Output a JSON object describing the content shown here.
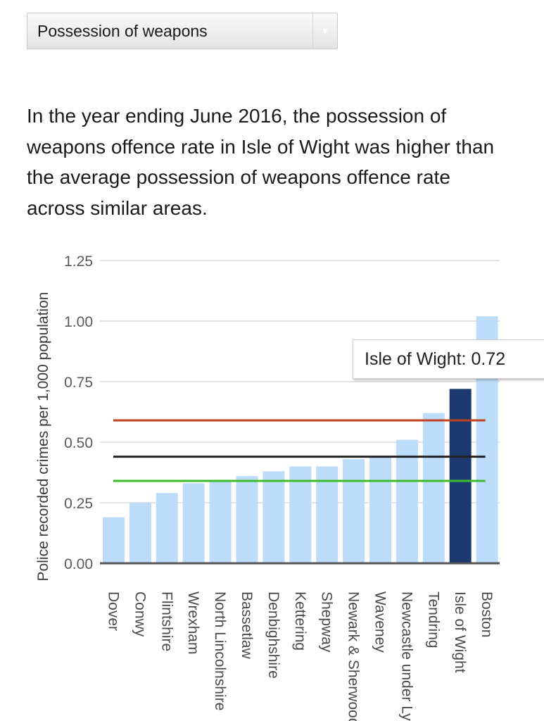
{
  "dropdown": {
    "selected": "Possession of weapons"
  },
  "summary": "In the year ending June 2016, the possession of weapons offence rate in Isle of Wight was higher than the average possession of weapons offence rate across similar areas.",
  "tooltip": {
    "text": "Isle of Wight: 0.72"
  },
  "chart_data": {
    "type": "bar",
    "title": "",
    "xlabel": "",
    "ylabel": "Police recorded crimes per 1,000 population",
    "ylim": [
      0,
      1.25
    ],
    "yticks": [
      "0.00",
      "0.25",
      "0.50",
      "0.75",
      "1.00",
      "1.25"
    ],
    "grid": true,
    "categories": [
      "Dover",
      "Conwy",
      "Flintshire",
      "Wrexham",
      "North Lincolnshire",
      "Bassetlaw",
      "Denbighshire",
      "Kettering",
      "Shepway",
      "Newark & Sherwood",
      "Waveney",
      "Newcastle under Lyme",
      "Tendring",
      "Isle of Wight",
      "Boston"
    ],
    "values": [
      0.19,
      0.25,
      0.29,
      0.33,
      0.34,
      0.36,
      0.38,
      0.4,
      0.4,
      0.43,
      0.44,
      0.51,
      0.62,
      0.72,
      1.02
    ],
    "highlight": "Isle of Wight",
    "bar_color": "#bcdcfa",
    "highlight_color": "#1c3a70",
    "reference_lines": [
      {
        "value": 0.59,
        "color": "#c2401e"
      },
      {
        "value": 0.44,
        "color": "#222222"
      },
      {
        "value": 0.34,
        "color": "#3dbb2b"
      }
    ]
  }
}
